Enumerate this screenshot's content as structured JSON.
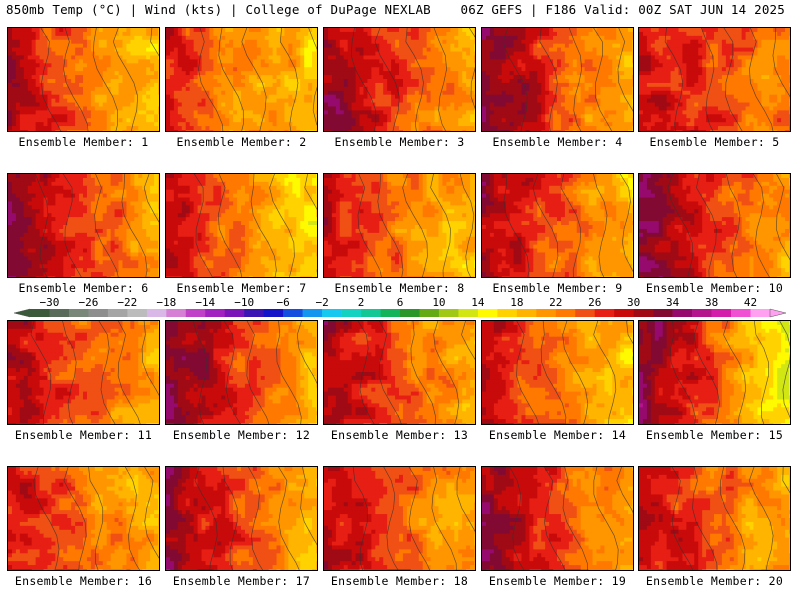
{
  "header": {
    "left": "850mb Temp (°C) | Wind (kts) | College of DuPage NEXLAB",
    "right": "06Z GEFS | F186 Valid: 00Z SAT JUN 14 2025"
  },
  "member_label_prefix": "Ensemble Member: ",
  "panels": [
    {
      "label": "Ensemble Member: 1",
      "member": 1,
      "west_temp": 31,
      "east_temp": 17,
      "center_temp": 24
    },
    {
      "label": "Ensemble Member: 2",
      "member": 2,
      "west_temp": 28,
      "east_temp": 17,
      "center_temp": 22
    },
    {
      "label": "Ensemble Member: 3",
      "member": 3,
      "west_temp": 33,
      "east_temp": 19,
      "center_temp": 25
    },
    {
      "label": "Ensemble Member: 4",
      "member": 4,
      "west_temp": 33,
      "east_temp": 18,
      "center_temp": 27
    },
    {
      "label": "Ensemble Member: 5",
      "member": 5,
      "west_temp": 29,
      "east_temp": 22,
      "center_temp": 28
    },
    {
      "label": "Ensemble Member: 6",
      "member": 6,
      "west_temp": 34,
      "east_temp": 20,
      "center_temp": 24
    },
    {
      "label": "Ensemble Member: 7",
      "member": 7,
      "west_temp": 29,
      "east_temp": 16,
      "center_temp": 22
    },
    {
      "label": "Ensemble Member: 8",
      "member": 8,
      "west_temp": 29,
      "east_temp": 18,
      "center_temp": 23
    },
    {
      "label": "Ensemble Member: 9",
      "member": 9,
      "west_temp": 31,
      "east_temp": 18,
      "center_temp": 26
    },
    {
      "label": "Ensemble Member: 10",
      "member": 10,
      "west_temp": 33,
      "east_temp": 20,
      "center_temp": 27
    },
    {
      "label": "Ensemble Member: 11",
      "member": 11,
      "west_temp": 31,
      "east_temp": 19,
      "center_temp": 24
    },
    {
      "label": "Ensemble Member: 12",
      "member": 12,
      "west_temp": 34,
      "east_temp": 19,
      "center_temp": 26
    },
    {
      "label": "Ensemble Member: 13",
      "member": 13,
      "west_temp": 32,
      "east_temp": 19,
      "center_temp": 25
    },
    {
      "label": "Ensemble Member: 14",
      "member": 14,
      "west_temp": 31,
      "east_temp": 17,
      "center_temp": 22
    },
    {
      "label": "Ensemble Member: 15",
      "member": 15,
      "west_temp": 33,
      "east_temp": 15,
      "center_temp": 27
    },
    {
      "label": "Ensemble Member: 16",
      "member": 16,
      "west_temp": 28,
      "east_temp": 19,
      "center_temp": 26
    },
    {
      "label": "Ensemble Member: 17",
      "member": 17,
      "west_temp": 33,
      "east_temp": 19,
      "center_temp": 25
    },
    {
      "label": "Ensemble Member: 18",
      "member": 18,
      "west_temp": 30,
      "east_temp": 20,
      "center_temp": 25
    },
    {
      "label": "Ensemble Member: 19",
      "member": 19,
      "west_temp": 33,
      "east_temp": 20,
      "center_temp": 27
    },
    {
      "label": "Ensemble Member: 20",
      "member": 20,
      "west_temp": 29,
      "east_temp": 19,
      "center_temp": 25
    }
  ],
  "colorbar": {
    "labels": [
      "−30",
      "−26",
      "−22",
      "−18",
      "−14",
      "−10",
      "−6",
      "−2",
      "2",
      "6",
      "10",
      "14",
      "18",
      "22",
      "26",
      "30",
      "34",
      "38",
      "42"
    ],
    "min": -32,
    "max": 44,
    "step": 2,
    "colors": [
      "#3a5a3a",
      "#596b59",
      "#788778",
      "#8e8e8e",
      "#a5a5a5",
      "#bcbcbc",
      "#d9b8e8",
      "#d580d5",
      "#c040c8",
      "#a020c0",
      "#7a14b8",
      "#3c14b4",
      "#1414c8",
      "#1450e0",
      "#1496f0",
      "#14c8f0",
      "#14d2c0",
      "#14c896",
      "#14b45a",
      "#289628",
      "#64aa14",
      "#a0c814",
      "#d2e614",
      "#fffa00",
      "#ffd200",
      "#ffb400",
      "#ff9600",
      "#ff7800",
      "#f05014",
      "#e61e14",
      "#c80a0a",
      "#a00a14",
      "#820a32",
      "#960a6e",
      "#b4148c",
      "#d21eaa",
      "#f050d2",
      "#ffa0f0"
    ]
  },
  "colors": {
    "background": "#ffffff",
    "panel_border": "#000000",
    "contour": "#333333"
  }
}
